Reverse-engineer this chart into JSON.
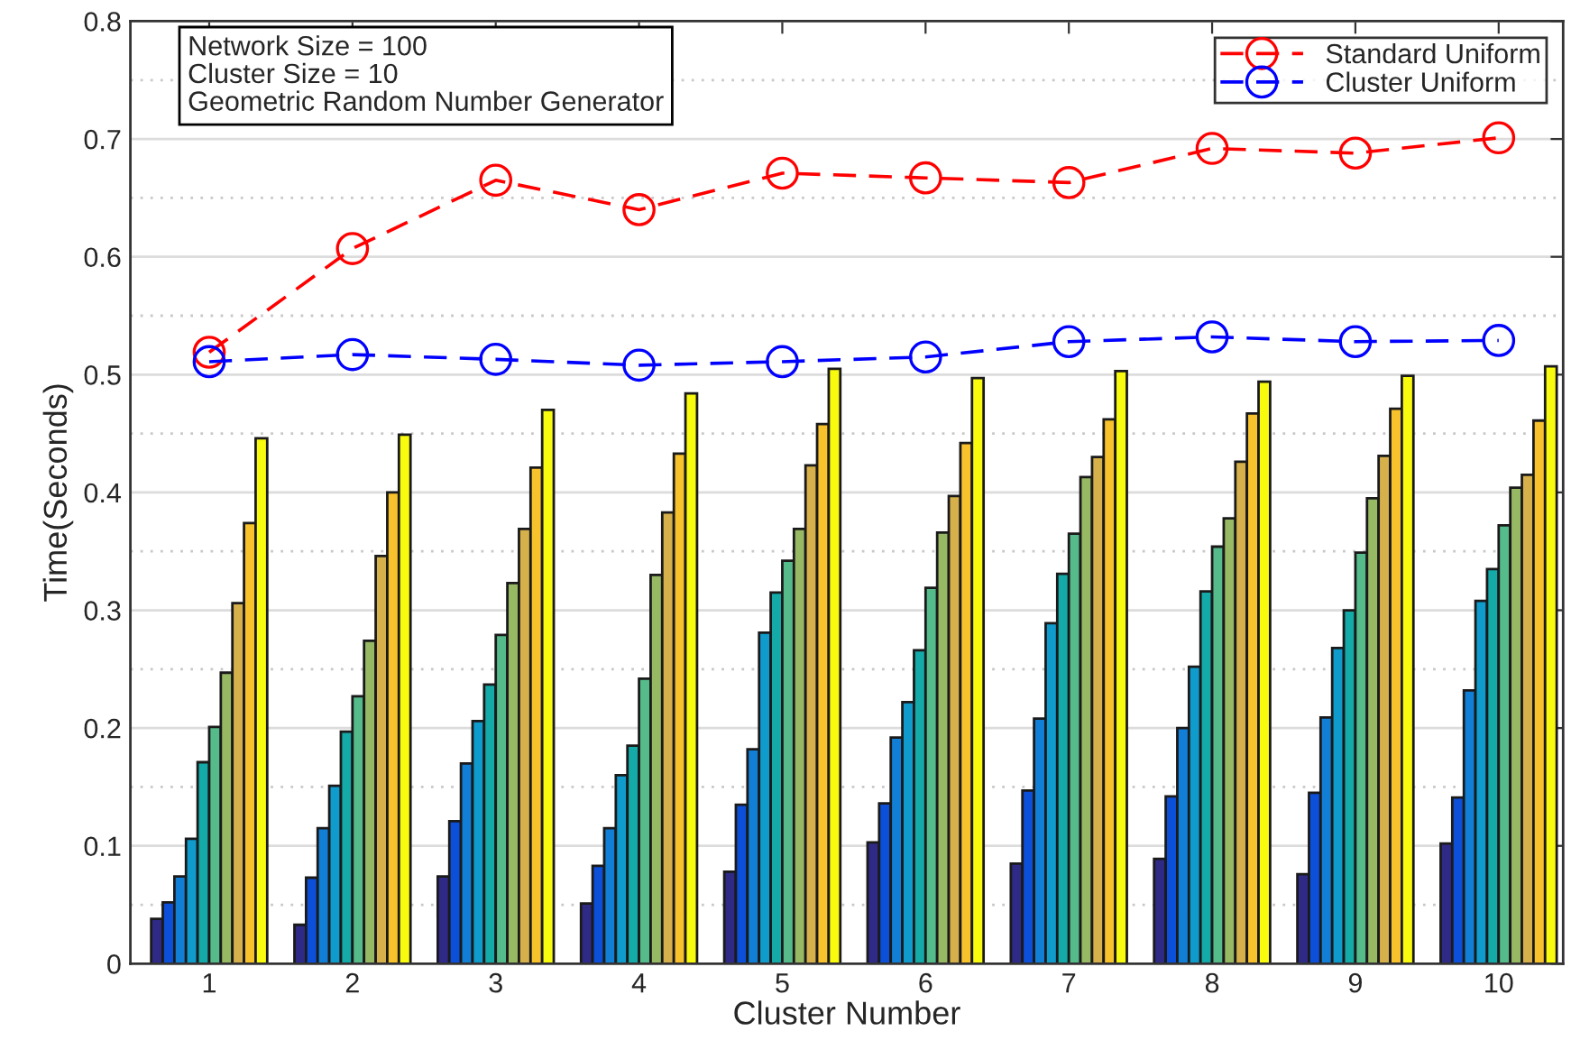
{
  "chart_data": {
    "type": "bar",
    "xlabel": "Cluster Number",
    "ylabel": "Time(Seconds)",
    "categories": [
      "1",
      "2",
      "3",
      "4",
      "5",
      "6",
      "7",
      "8",
      "9",
      "10"
    ],
    "ylim": [
      0,
      0.8
    ],
    "yticks": [
      0,
      0.1,
      0.2,
      0.3,
      0.4,
      0.5,
      0.6,
      0.7,
      0.8
    ],
    "grid": "y",
    "legend": "top right",
    "marker": "circle",
    "line_style": "dashed",
    "annotations": [
      "Network Size = 100\nCluster Size = 10\nGeometric Random Number Generator"
    ],
    "series": [
      {
        "color": "#2e2a86",
        "values": [
          0.038,
          0.033,
          0.074,
          0.051,
          0.078,
          0.103,
          0.085,
          0.089,
          0.076,
          0.102
        ]
      },
      {
        "color": "#0c4fd8",
        "values": [
          0.052,
          0.073,
          0.121,
          0.083,
          0.135,
          0.136,
          0.147,
          0.142,
          0.145,
          0.141
        ]
      },
      {
        "color": "#127fd6",
        "values": [
          0.074,
          0.115,
          0.17,
          0.115,
          0.182,
          0.192,
          0.208,
          0.2,
          0.209,
          0.232
        ]
      },
      {
        "color": "#0f9bcc",
        "values": [
          0.106,
          0.151,
          0.206,
          0.16,
          0.281,
          0.222,
          0.289,
          0.252,
          0.268,
          0.308
        ]
      },
      {
        "color": "#13aaa8",
        "values": [
          0.171,
          0.197,
          0.237,
          0.185,
          0.315,
          0.266,
          0.331,
          0.316,
          0.3,
          0.335
        ]
      },
      {
        "color": "#55bb8a",
        "values": [
          0.201,
          0.227,
          0.279,
          0.242,
          0.342,
          0.319,
          0.365,
          0.354,
          0.349,
          0.372
        ]
      },
      {
        "color": "#97b964",
        "values": [
          0.247,
          0.274,
          0.323,
          0.33,
          0.369,
          0.366,
          0.413,
          0.378,
          0.395,
          0.404
        ]
      },
      {
        "color": "#d6b04a",
        "values": [
          0.306,
          0.346,
          0.369,
          0.383,
          0.423,
          0.397,
          0.43,
          0.426,
          0.431,
          0.415
        ]
      },
      {
        "color": "#f8c22d",
        "values": [
          0.374,
          0.4,
          0.421,
          0.433,
          0.458,
          0.442,
          0.462,
          0.467,
          0.471,
          0.461
        ]
      },
      {
        "color": "#f9fb0e",
        "values": [
          0.446,
          0.449,
          0.47,
          0.484,
          0.505,
          0.497,
          0.503,
          0.494,
          0.499,
          0.507
        ]
      },
      {
        "type": "line",
        "name": "Standard Uniform",
        "color": "#ff0000",
        "values": [
          0.519,
          0.607,
          0.665,
          0.64,
          0.671,
          0.667,
          0.663,
          0.692,
          0.688,
          0.701
        ]
      },
      {
        "type": "line",
        "name": "Cluster Uniform",
        "color": "#0000ff",
        "values": [
          0.511,
          0.517,
          0.513,
          0.508,
          0.511,
          0.515,
          0.528,
          0.532,
          0.528,
          0.529
        ]
      }
    ]
  }
}
